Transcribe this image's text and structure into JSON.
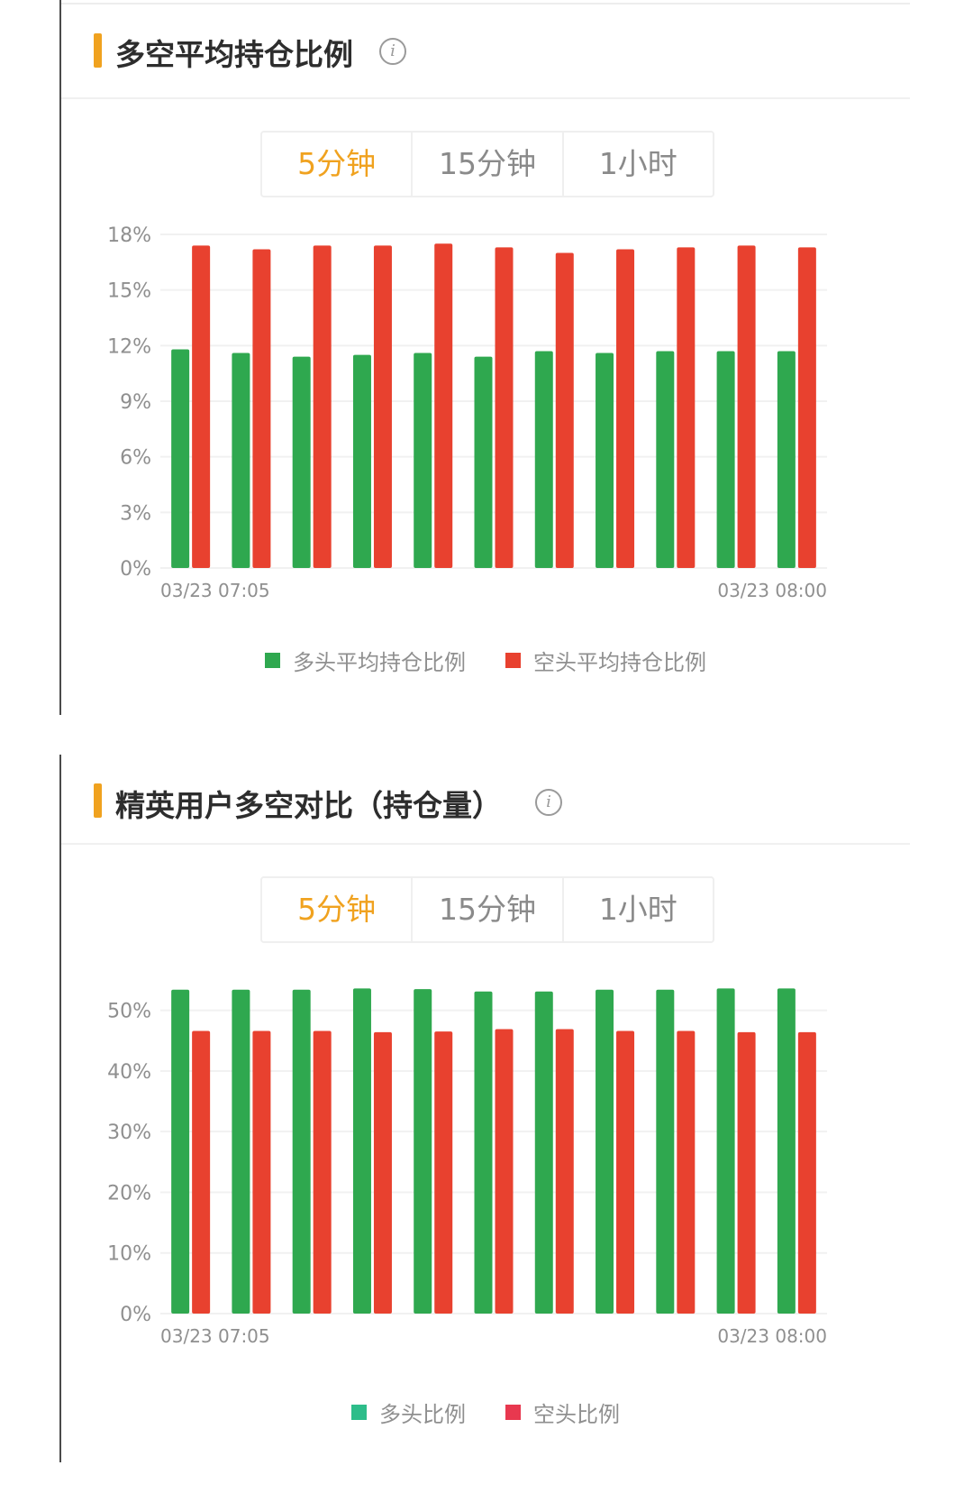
{
  "colors": {
    "accent": "#f0a21f",
    "long": "#2fa84f",
    "short": "#e8412f",
    "long_alt": "#2dbd8a",
    "short_alt": "#e8384f"
  },
  "panels": [
    {
      "title": "多空平均持仓比例",
      "info_icon": "info-icon",
      "tabs": [
        {
          "label": "5分钟",
          "active": true
        },
        {
          "label": "15分钟",
          "active": false
        },
        {
          "label": "1小时",
          "active": false
        }
      ],
      "legend": [
        {
          "label": "多头平均持仓比例",
          "color": "#2fa84f"
        },
        {
          "label": "空头平均持仓比例",
          "color": "#e8412f"
        }
      ],
      "chart_data": {
        "type": "bar",
        "x_first_label": "03/23 07:05",
        "x_last_label": "03/23 08:00",
        "yticks": [
          "0%",
          "3%",
          "6%",
          "9%",
          "12%",
          "15%",
          "18%"
        ],
        "ylim": [
          0,
          18
        ],
        "series": [
          {
            "name": "多头平均持仓比例",
            "values": [
              11.8,
              11.6,
              11.4,
              11.5,
              11.6,
              11.4,
              11.7,
              11.6,
              11.7,
              11.7,
              11.7
            ]
          },
          {
            "name": "空头平均持仓比例",
            "values": [
              17.4,
              17.2,
              17.4,
              17.4,
              17.5,
              17.3,
              17.0,
              17.2,
              17.3,
              17.4,
              17.3
            ]
          }
        ]
      }
    },
    {
      "title": "精英用户多空对比（持仓量）",
      "info_icon": "info-icon",
      "tabs": [
        {
          "label": "5分钟",
          "active": true
        },
        {
          "label": "15分钟",
          "active": false
        },
        {
          "label": "1小时",
          "active": false
        }
      ],
      "legend": [
        {
          "label": "多头比例",
          "color": "#2dbd8a"
        },
        {
          "label": "空头比例",
          "color": "#e8384f"
        }
      ],
      "chart_data": {
        "type": "bar",
        "x_first_label": "03/23 07:05",
        "x_last_label": "03/23 08:00",
        "yticks": [
          "0%",
          "10%",
          "20%",
          "30%",
          "40%",
          "50%"
        ],
        "ylim": [
          0,
          55
        ],
        "series": [
          {
            "name": "多头比例",
            "values": [
              53.4,
              53.4,
              53.4,
              53.6,
              53.5,
              53.1,
              53.1,
              53.4,
              53.4,
              53.6,
              53.6
            ]
          },
          {
            "name": "空头比例",
            "values": [
              46.6,
              46.6,
              46.6,
              46.4,
              46.5,
              46.9,
              46.9,
              46.6,
              46.6,
              46.4,
              46.4
            ]
          }
        ]
      }
    }
  ]
}
